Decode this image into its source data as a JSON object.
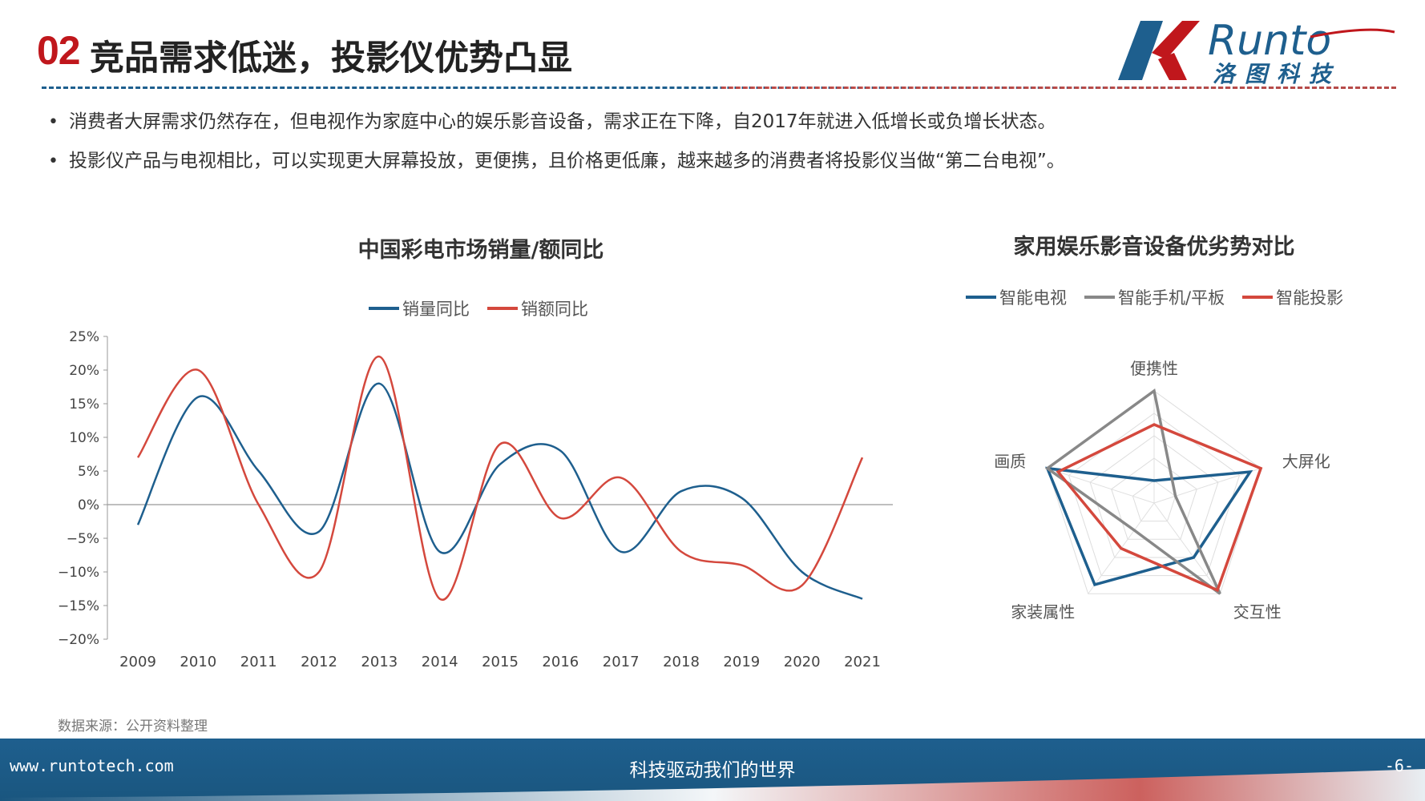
{
  "header": {
    "number": "02",
    "title": "竞品需求低迷，投影仪优势凸显",
    "logo_text": "Runto",
    "logo_subtext": "洛图科技"
  },
  "bullets": [
    "消费者大屏需求仍然存在，但电视作为家庭中心的娱乐影音设备，需求正在下降，自2017年就进入低增长或负增长状态。",
    "投影仪产品与电视相比，可以实现更大屏幕投放，更便携，且价格更低廉，越来越多的消费者将投影仪当做“第二台电视”。"
  ],
  "source": "数据来源：公开资料整理",
  "footer": {
    "url": "www.runtotech.com",
    "slogan": "科技驱动我们的世界",
    "page": "-6-"
  },
  "colors": {
    "brand_blue": "#1e5f8e",
    "brand_red": "#c0171c",
    "series_volume": "#1e5f8e",
    "series_value": "#d4483d",
    "series_tv": "#1e5f8e",
    "series_phone": "#888888",
    "series_projector": "#d4483d"
  },
  "chart_data": [
    {
      "type": "line",
      "title": "中国彩电市场销量/额同比",
      "categories": [
        "2009",
        "2010",
        "2011",
        "2012",
        "2013",
        "2014",
        "2015",
        "2016",
        "2017",
        "2018",
        "2019",
        "2020",
        "2021"
      ],
      "y_ticks": [
        "25%",
        "20%",
        "15%",
        "10%",
        "5%",
        "0%",
        "−5%",
        "−10%",
        "−15%",
        "−20%"
      ],
      "ylim": [
        -20,
        25
      ],
      "unit": "%",
      "legend_position": "top-center",
      "series": [
        {
          "name": "销量同比",
          "values": [
            -3,
            16,
            5,
            -4,
            18,
            -7,
            6,
            8,
            -7,
            2,
            1,
            -10,
            -14
          ]
        },
        {
          "name": "销额同比",
          "values": [
            7,
            20,
            0,
            -10,
            22,
            -14,
            9,
            -2,
            4,
            -7,
            -9,
            -12,
            7
          ]
        }
      ]
    },
    {
      "type": "radar",
      "title": "家用娱乐影音设备优劣势对比",
      "axes": [
        "便携性",
        "大屏化",
        "交互性",
        "家装属性",
        "画质"
      ],
      "max": 5,
      "legend_position": "top-center",
      "series": [
        {
          "name": "智能电视",
          "values": [
            1,
            4.5,
            3,
            4.5,
            5
          ]
        },
        {
          "name": "智能手机/平板",
          "values": [
            5,
            1,
            5,
            1.5,
            5
          ]
        },
        {
          "name": "智能投影",
          "values": [
            3.5,
            5,
            4.8,
            2.5,
            4.5
          ]
        }
      ]
    }
  ]
}
